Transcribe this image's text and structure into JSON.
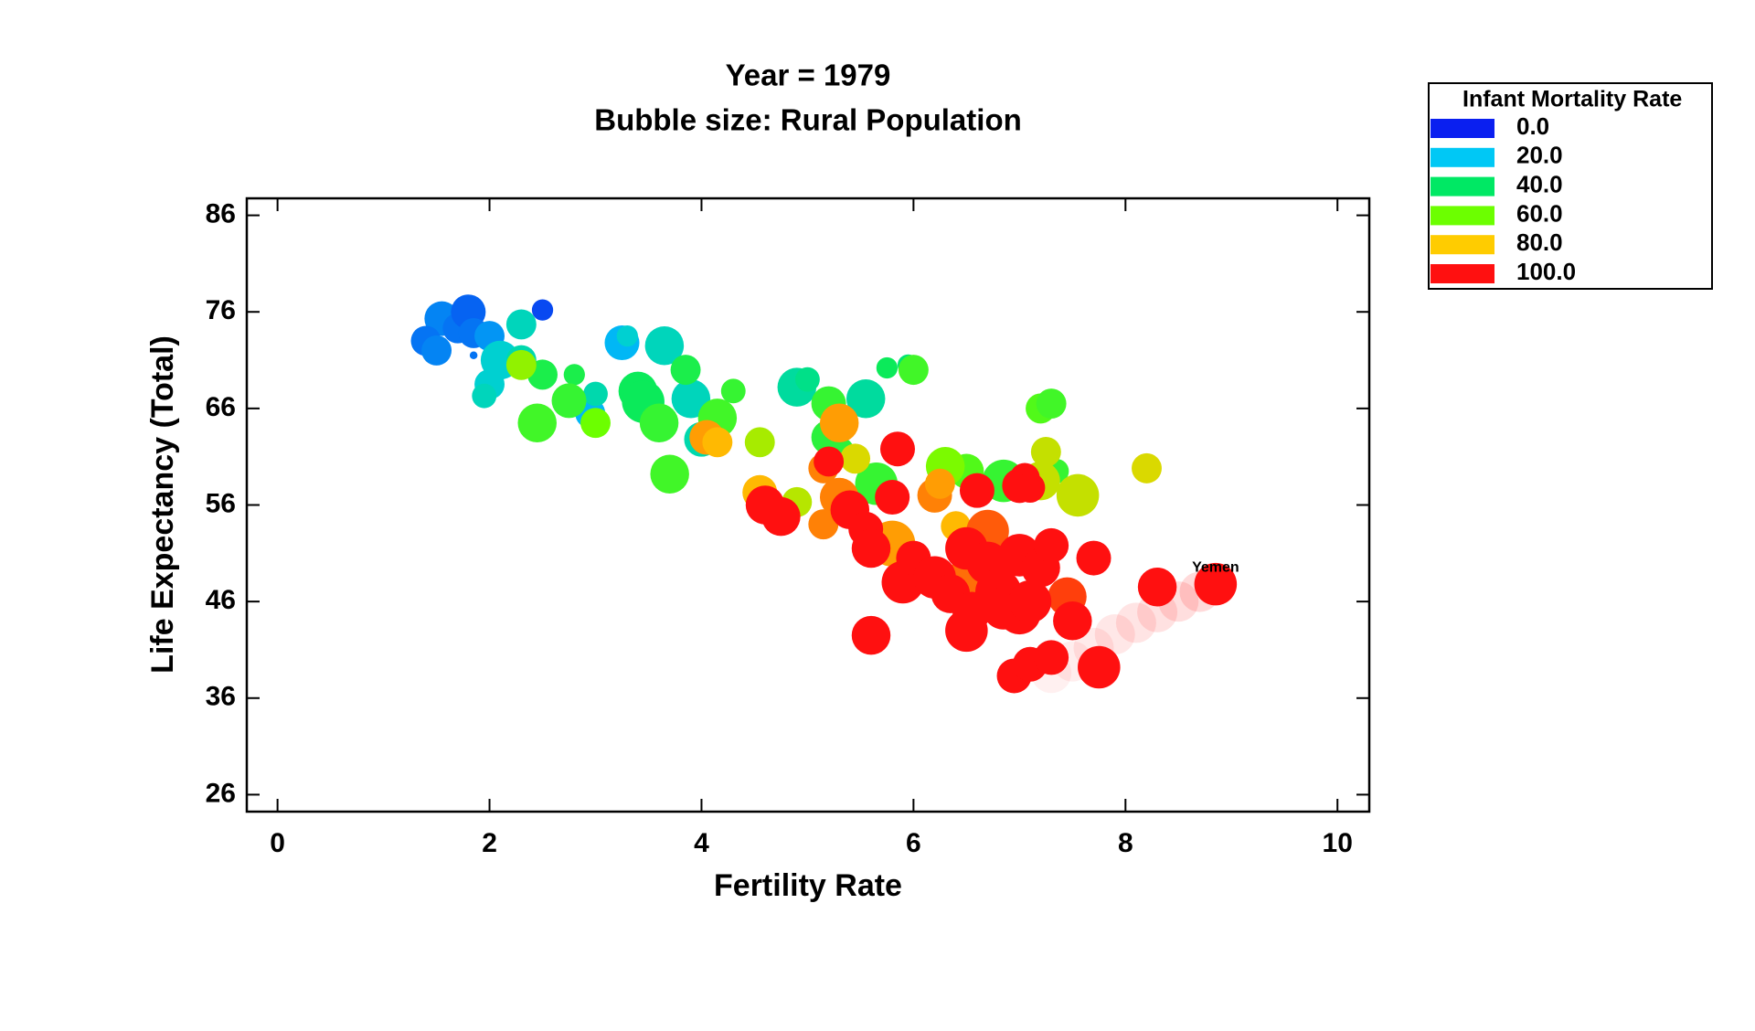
{
  "chart_data": {
    "type": "bubble",
    "title": "Year = 1979",
    "subtitle": "Bubble size: Rural Population",
    "x_label": "Fertility Rate",
    "y_label": "Life Expectancy (Total)",
    "xlim": [
      -0.29,
      10.3
    ],
    "ylim": [
      24.24,
      87.76
    ],
    "xticks": [
      0,
      2,
      4,
      6,
      8,
      10
    ],
    "yticks": [
      26,
      36,
      46,
      56,
      66,
      76,
      86
    ],
    "x": [
      1.55,
      1.7,
      1.8,
      1.4,
      1.5,
      1.85,
      2.0,
      2.5,
      1.85,
      2.1,
      2.3,
      2.0,
      1.95,
      2.3,
      3.25,
      3.3,
      3.65,
      3.9,
      2.95,
      3.0,
      4.9,
      5.55,
      5.0,
      5.95,
      4.0,
      2.5,
      2.8,
      2.75,
      2.45,
      3.0,
      3.4,
      3.45,
      3.6,
      3.7,
      3.85,
      4.15,
      4.3,
      5.2,
      5.2,
      5.3,
      5.65,
      5.75,
      6.0,
      6.85,
      7.2,
      7.3,
      7.35,
      6.5,
      6.3,
      2.3,
      4.55,
      4.9,
      5.45,
      7.2,
      7.25,
      7.55,
      8.2,
      4.05,
      4.15,
      4.55,
      5.15,
      5.3,
      5.3,
      5.15,
      5.8,
      6.2,
      6.25,
      6.4,
      6.5,
      6.7,
      7.45,
      4.6,
      4.75,
      5.2,
      5.4,
      5.55,
      5.6,
      5.8,
      5.85,
      5.6,
      5.9,
      6.0,
      6.2,
      6.35,
      6.5,
      6.55,
      6.6,
      6.5,
      6.7,
      6.8,
      6.85,
      7.0,
      7.1,
      7.0,
      7.2,
      7.3,
      7.0,
      7.05,
      7.1,
      6.95,
      7.1,
      7.3,
      7.75,
      7.5,
      7.7,
      8.3,
      8.85
    ],
    "y": [
      75.3,
      74.3,
      76,
      73,
      72,
      73.8,
      73.5,
      76.2,
      71.5,
      71,
      74.7,
      68.5,
      67.3,
      71,
      72.8,
      73.5,
      72.5,
      67,
      65.5,
      67.5,
      68.2,
      67,
      69,
      70.5,
      62.8,
      69.5,
      69.5,
      66.8,
      64.5,
      64.5,
      67.8,
      66.7,
      64.5,
      59.2,
      70,
      65,
      67.8,
      66.5,
      63,
      61.5,
      58.2,
      70.2,
      70,
      58.5,
      66,
      66.5,
      59.5,
      59.5,
      60,
      70.5,
      62.5,
      56.3,
      60.8,
      58.5,
      61.5,
      57,
      59.8,
      63,
      62.5,
      57.3,
      59.8,
      64.5,
      56.8,
      54,
      52,
      57,
      58.2,
      53.8,
      48.5,
      53.3,
      46.5,
      56,
      54.8,
      60.5,
      55.5,
      53.5,
      51.5,
      56.8,
      61.8,
      42.5,
      48,
      50.5,
      48.5,
      46.8,
      43,
      45,
      57.5,
      51.5,
      50,
      47,
      45.3,
      44.8,
      46,
      50.8,
      49.5,
      51.8,
      58,
      58.8,
      57.8,
      38.3,
      39.5,
      40.2,
      39.2,
      44,
      50.5,
      47.5,
      47.8
    ],
    "sizes": [
      4,
      3,
      4,
      3,
      3,
      3,
      3,
      1.5,
      0.2,
      5,
      3,
      3,
      2,
      3,
      4,
      1.5,
      5,
      5,
      3,
      2,
      5,
      5,
      2,
      1.5,
      4,
      3,
      1.5,
      4,
      5,
      3,
      5,
      6,
      5,
      5,
      3,
      5,
      2,
      4,
      4,
      3,
      6,
      1.5,
      3,
      6,
      3,
      3,
      2,
      4,
      5,
      3,
      3,
      3,
      3,
      5,
      3,
      6,
      3,
      4,
      3,
      4,
      3,
      5,
      5,
      3,
      7,
      4,
      3,
      3,
      5,
      6,
      5,
      5,
      5,
      3,
      5,
      4,
      5,
      4,
      4,
      5,
      6,
      4,
      6,
      5,
      6,
      5,
      4,
      6,
      6,
      7,
      6,
      6,
      6,
      6,
      5,
      4,
      4,
      3,
      3,
      4,
      4,
      4,
      6,
      5,
      4,
      5,
      6
    ],
    "color_values": [
      12,
      10,
      8,
      10,
      12,
      10,
      14,
      5,
      10,
      25,
      28,
      25,
      28,
      30,
      18,
      25,
      28,
      28,
      18,
      30,
      32,
      32,
      35,
      38,
      30,
      45,
      45,
      50,
      52,
      60,
      42,
      42,
      50,
      52,
      45,
      52,
      50,
      50,
      48,
      48,
      50,
      42,
      52,
      50,
      55,
      52,
      50,
      55,
      62,
      65,
      68,
      70,
      75,
      72,
      72,
      72,
      75,
      85,
      82,
      82,
      88,
      85,
      88,
      88,
      85,
      88,
      85,
      82,
      90,
      92,
      95,
      110,
      110,
      110,
      110,
      110,
      110,
      110,
      110,
      120,
      110,
      110,
      110,
      120,
      120,
      120,
      110,
      110,
      120,
      120,
      110,
      120,
      110,
      110,
      110,
      110,
      110,
      110,
      110,
      130,
      130,
      130,
      130,
      130,
      120,
      130,
      150
    ],
    "trail": {
      "x": [
        7.3,
        7.5,
        7.7,
        7.9,
        8.1,
        8.3,
        8.5,
        8.7
      ],
      "y": [
        38.6,
        39.8,
        41.2,
        42.6,
        43.8,
        44.9,
        46,
        47
      ]
    },
    "annotation": "Yemen",
    "legend": {
      "title": "Infant Mortality Rate",
      "ticks": [
        {
          "value": 0,
          "label": "0.0"
        },
        {
          "value": 20,
          "label": "20.0"
        },
        {
          "value": 40,
          "label": "40.0"
        },
        {
          "value": 60,
          "label": "60.0"
        },
        {
          "value": 80,
          "label": "80.0"
        },
        {
          "value": 100,
          "label": "100.0"
        }
      ],
      "colors": [
        "#0a1ff0",
        "#00c8f5",
        "#00e864",
        "#6cff00",
        "#ffcc00",
        "#ff1010"
      ]
    }
  }
}
